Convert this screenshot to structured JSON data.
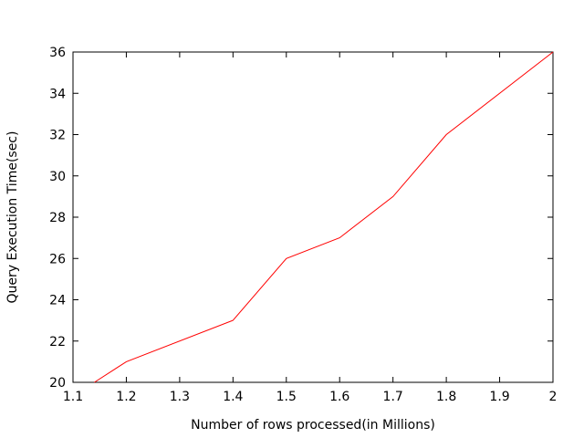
{
  "chart_data": {
    "type": "line",
    "title": "",
    "xlabel": "Number of rows processed(in Millions)",
    "ylabel": "Query Execution Time(sec)",
    "xlim": [
      1.1,
      2.0
    ],
    "ylim": [
      20,
      36
    ],
    "xticks": [
      "1.1",
      "1.2",
      "1.3",
      "1.4",
      "1.5",
      "1.6",
      "1.7",
      "1.8",
      "1.9",
      "2"
    ],
    "yticks": [
      "20",
      "22",
      "24",
      "26",
      "28",
      "30",
      "32",
      "34",
      "36"
    ],
    "grid": false,
    "legend": "none",
    "series": [
      {
        "color": "#ff0000",
        "x": [
          1.14,
          1.2,
          1.4,
          1.5,
          1.6,
          1.7,
          1.8,
          2.0
        ],
        "y": [
          20,
          21,
          23,
          26,
          27,
          29,
          32,
          36
        ]
      }
    ]
  }
}
